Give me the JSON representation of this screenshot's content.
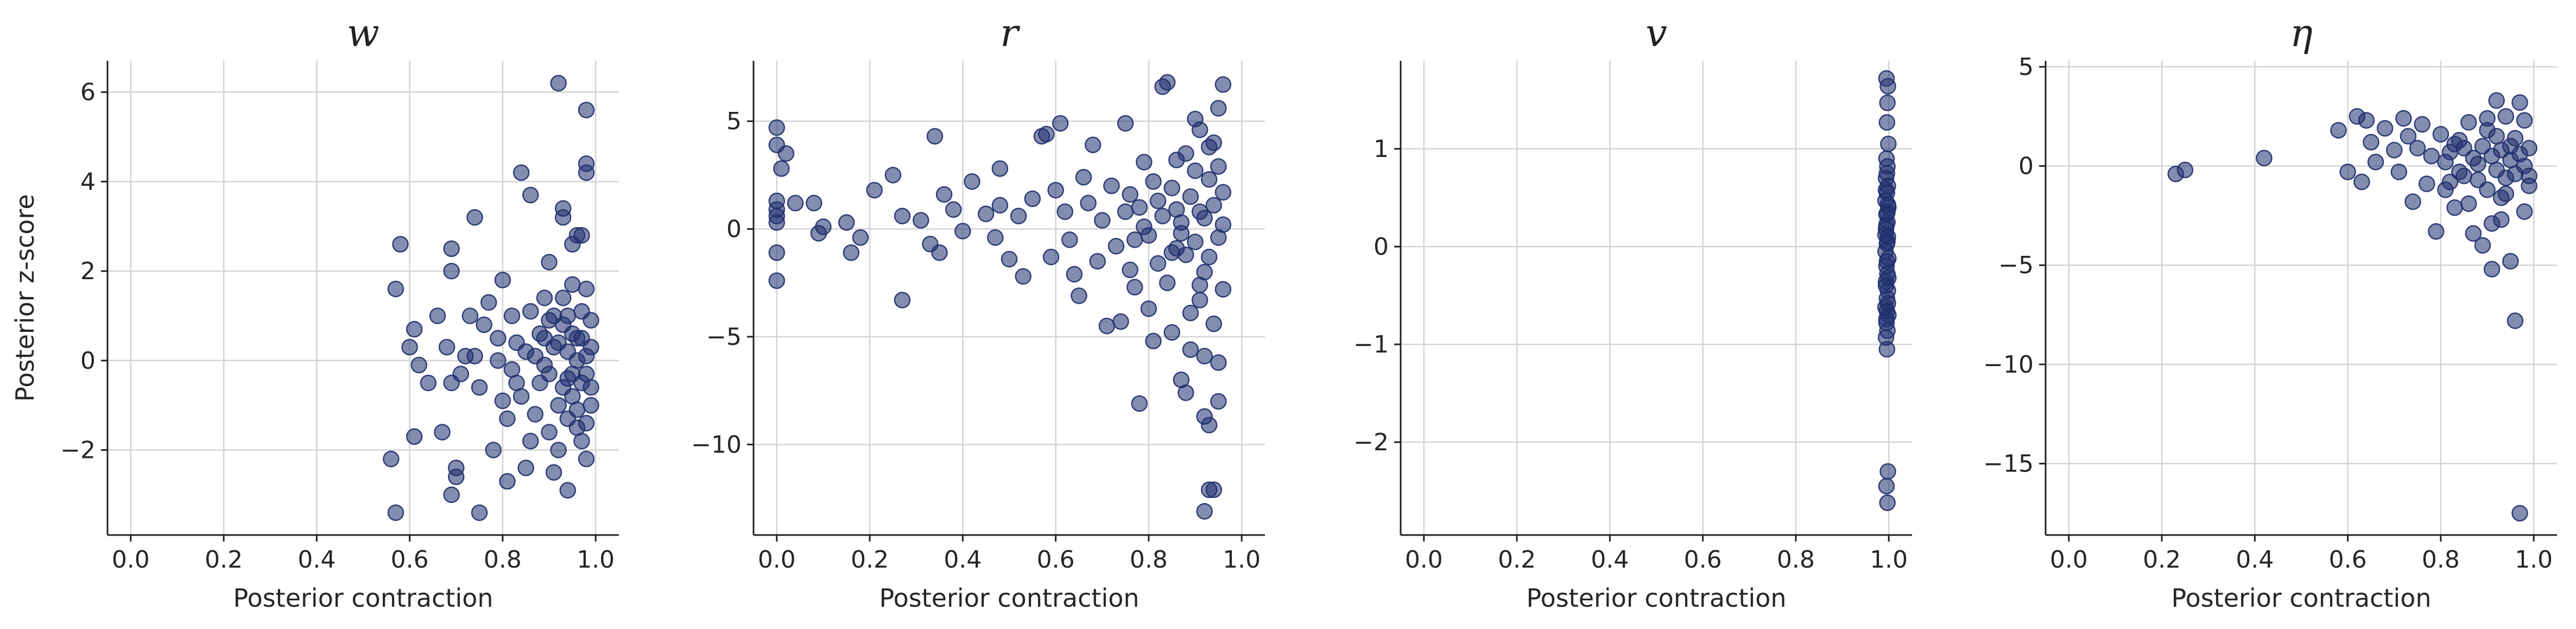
{
  "chart_data": [
    {
      "type": "scatter",
      "title": "w",
      "xlabel": "Posterior contraction",
      "ylabel": "Posterior z-score",
      "xlim": [
        -0.05,
        1.05
      ],
      "ylim": [
        -3.9,
        6.7
      ],
      "xticks": [
        "0.0",
        "0.2",
        "0.4",
        "0.6",
        "0.8",
        "1.0"
      ],
      "yticks": [
        "−2",
        "0",
        "2",
        "4",
        "6"
      ],
      "ytick_values": [
        -2,
        0,
        2,
        4,
        6
      ],
      "grid": true,
      "marker_color": "#1f2f6e",
      "points": [
        [
          0.58,
          2.6
        ],
        [
          0.57,
          1.6
        ],
        [
          0.6,
          0.3
        ],
        [
          0.61,
          0.7
        ],
        [
          0.56,
          -2.2
        ],
        [
          0.57,
          -3.4
        ],
        [
          0.61,
          -1.7
        ],
        [
          0.66,
          1.0
        ],
        [
          0.69,
          2.5
        ],
        [
          0.69,
          2.0
        ],
        [
          0.68,
          0.3
        ],
        [
          0.69,
          -0.5
        ],
        [
          0.67,
          -1.6
        ],
        [
          0.7,
          -2.4
        ],
        [
          0.7,
          -2.6
        ],
        [
          0.69,
          -3.0
        ],
        [
          0.74,
          3.2
        ],
        [
          0.73,
          1.0
        ],
        [
          0.74,
          0.1
        ],
        [
          0.75,
          -0.6
        ],
        [
          0.75,
          -3.4
        ],
        [
          0.78,
          -2.0
        ],
        [
          0.79,
          0.5
        ],
        [
          0.8,
          1.8
        ],
        [
          0.81,
          -1.3
        ],
        [
          0.81,
          -2.7
        ],
        [
          0.82,
          1.0
        ],
        [
          0.83,
          -0.5
        ],
        [
          0.84,
          4.2
        ],
        [
          0.86,
          3.7
        ],
        [
          0.85,
          -2.4
        ],
        [
          0.86,
          -1.8
        ],
        [
          0.87,
          0.1
        ],
        [
          0.88,
          -0.5
        ],
        [
          0.89,
          1.4
        ],
        [
          0.9,
          -1.6
        ],
        [
          0.9,
          2.2
        ],
        [
          0.91,
          -2.5
        ],
        [
          0.92,
          6.2
        ],
        [
          0.93,
          3.4
        ],
        [
          0.93,
          3.2
        ],
        [
          0.92,
          -2.0
        ],
        [
          0.94,
          -2.9
        ],
        [
          0.94,
          1.0
        ],
        [
          0.95,
          2.6
        ],
        [
          0.95,
          -0.8
        ],
        [
          0.96,
          2.8
        ],
        [
          0.96,
          -1.5
        ],
        [
          0.97,
          0.5
        ],
        [
          0.98,
          5.6
        ],
        [
          0.98,
          4.4
        ],
        [
          0.98,
          4.2
        ],
        [
          0.97,
          2.8
        ],
        [
          0.98,
          1.6
        ],
        [
          0.98,
          -0.3
        ],
        [
          0.98,
          -2.2
        ],
        [
          0.99,
          0.9
        ],
        [
          0.99,
          -1.0
        ],
        [
          0.97,
          -1.8
        ],
        [
          0.96,
          0.0
        ],
        [
          0.95,
          0.6
        ],
        [
          0.94,
          -0.4
        ],
        [
          0.93,
          1.4
        ],
        [
          0.92,
          -1.0
        ],
        [
          0.91,
          0.3
        ],
        [
          0.9,
          0.9
        ],
        [
          0.89,
          -0.1
        ],
        [
          0.88,
          0.6
        ],
        [
          0.87,
          -1.2
        ],
        [
          0.86,
          1.1
        ],
        [
          0.85,
          0.2
        ],
        [
          0.84,
          -0.8
        ],
        [
          0.83,
          0.4
        ],
        [
          0.82,
          -0.2
        ],
        [
          0.8,
          -0.9
        ],
        [
          0.79,
          0.0
        ],
        [
          0.77,
          1.3
        ],
        [
          0.76,
          0.8
        ],
        [
          0.72,
          0.1
        ],
        [
          0.71,
          -0.3
        ],
        [
          0.64,
          -0.5
        ],
        [
          0.62,
          -0.1
        ],
        [
          0.94,
          0.2
        ],
        [
          0.95,
          -0.3
        ],
        [
          0.96,
          0.5
        ],
        [
          0.97,
          -0.5
        ],
        [
          0.98,
          0.1
        ],
        [
          0.99,
          0.3
        ],
        [
          0.93,
          -0.6
        ],
        [
          0.92,
          0.4
        ],
        [
          0.96,
          -1.1
        ],
        [
          0.97,
          1.1
        ],
        [
          0.95,
          1.7
        ],
        [
          0.94,
          -1.3
        ],
        [
          0.98,
          -1.4
        ],
        [
          0.99,
          -0.6
        ],
        [
          0.91,
          1.0
        ],
        [
          0.9,
          -0.3
        ],
        [
          0.89,
          0.5
        ],
        [
          0.93,
          0.8
        ]
      ]
    },
    {
      "type": "scatter",
      "title": "r",
      "xlabel": "Posterior contraction",
      "ylabel": "",
      "xlim": [
        -0.05,
        1.05
      ],
      "ylim": [
        -14.2,
        7.8
      ],
      "xticks": [
        "0.0",
        "0.2",
        "0.4",
        "0.6",
        "0.8",
        "1.0"
      ],
      "yticks": [
        "−10",
        "−5",
        "0",
        "5"
      ],
      "ytick_values": [
        -10,
        -5,
        0,
        5
      ],
      "grid": true,
      "marker_color": "#1f2f6e",
      "points": [
        [
          0.0,
          4.7
        ],
        [
          0.0,
          3.9
        ],
        [
          0.01,
          2.8
        ],
        [
          0.02,
          3.5
        ],
        [
          0.0,
          1.3
        ],
        [
          0.0,
          0.9
        ],
        [
          0.0,
          0.6
        ],
        [
          0.0,
          0.3
        ],
        [
          0.0,
          -1.1
        ],
        [
          0.0,
          -2.4
        ],
        [
          0.04,
          1.2
        ],
        [
          0.08,
          1.2
        ],
        [
          0.09,
          -0.2
        ],
        [
          0.1,
          0.1
        ],
        [
          0.15,
          0.3
        ],
        [
          0.16,
          -1.1
        ],
        [
          0.18,
          -0.4
        ],
        [
          0.21,
          1.8
        ],
        [
          0.25,
          2.5
        ],
        [
          0.27,
          0.6
        ],
        [
          0.27,
          -3.3
        ],
        [
          0.31,
          0.4
        ],
        [
          0.33,
          -0.7
        ],
        [
          0.34,
          4.3
        ],
        [
          0.35,
          -1.1
        ],
        [
          0.36,
          1.6
        ],
        [
          0.38,
          0.9
        ],
        [
          0.4,
          -0.1
        ],
        [
          0.42,
          2.2
        ],
        [
          0.45,
          0.7
        ],
        [
          0.47,
          -0.4
        ],
        [
          0.48,
          2.8
        ],
        [
          0.48,
          1.1
        ],
        [
          0.5,
          -1.4
        ],
        [
          0.52,
          0.6
        ],
        [
          0.53,
          -2.2
        ],
        [
          0.55,
          1.4
        ],
        [
          0.57,
          4.3
        ],
        [
          0.58,
          4.4
        ],
        [
          0.59,
          -1.3
        ],
        [
          0.6,
          1.8
        ],
        [
          0.61,
          4.9
        ],
        [
          0.62,
          0.8
        ],
        [
          0.63,
          -0.5
        ],
        [
          0.64,
          -2.1
        ],
        [
          0.65,
          -3.1
        ],
        [
          0.66,
          2.4
        ],
        [
          0.67,
          1.2
        ],
        [
          0.68,
          3.9
        ],
        [
          0.69,
          -1.5
        ],
        [
          0.7,
          0.4
        ],
        [
          0.71,
          -4.5
        ],
        [
          0.72,
          2.0
        ],
        [
          0.73,
          -0.8
        ],
        [
          0.74,
          -4.3
        ],
        [
          0.75,
          4.9
        ],
        [
          0.76,
          1.6
        ],
        [
          0.77,
          -2.7
        ],
        [
          0.78,
          -8.1
        ],
        [
          0.79,
          3.1
        ],
        [
          0.8,
          -0.3
        ],
        [
          0.81,
          -5.2
        ],
        [
          0.82,
          1.3
        ],
        [
          0.83,
          6.6
        ],
        [
          0.84,
          6.8
        ],
        [
          0.85,
          -4.8
        ],
        [
          0.86,
          3.2
        ],
        [
          0.87,
          -7.0
        ],
        [
          0.88,
          -7.6
        ],
        [
          0.89,
          -5.6
        ],
        [
          0.9,
          5.1
        ],
        [
          0.91,
          -3.3
        ],
        [
          0.92,
          -8.7
        ],
        [
          0.93,
          -9.1
        ],
        [
          0.93,
          -12.1
        ],
        [
          0.94,
          -12.1
        ],
        [
          0.92,
          -13.1
        ],
        [
          0.95,
          -8.0
        ],
        [
          0.95,
          5.6
        ],
        [
          0.96,
          6.7
        ],
        [
          0.94,
          4.0
        ],
        [
          0.93,
          2.3
        ],
        [
          0.92,
          -2.0
        ],
        [
          0.91,
          0.8
        ],
        [
          0.9,
          -0.6
        ],
        [
          0.89,
          1.5
        ],
        [
          0.88,
          -1.2
        ],
        [
          0.87,
          0.3
        ],
        [
          0.86,
          -0.9
        ],
        [
          0.85,
          1.9
        ],
        [
          0.84,
          -2.5
        ],
        [
          0.83,
          0.6
        ],
        [
          0.82,
          -1.6
        ],
        [
          0.81,
          2.2
        ],
        [
          0.8,
          -3.7
        ],
        [
          0.79,
          0.1
        ],
        [
          0.78,
          1.0
        ],
        [
          0.77,
          -0.5
        ],
        [
          0.76,
          -1.9
        ],
        [
          0.75,
          0.8
        ],
        [
          0.96,
          0.2
        ],
        [
          0.95,
          -0.4
        ],
        [
          0.94,
          1.1
        ],
        [
          0.93,
          -1.3
        ],
        [
          0.92,
          0.5
        ],
        [
          0.91,
          -2.6
        ],
        [
          0.9,
          2.7
        ],
        [
          0.89,
          -3.9
        ],
        [
          0.88,
          3.5
        ],
        [
          0.87,
          -0.2
        ],
        [
          0.86,
          0.9
        ],
        [
          0.85,
          -1.1
        ],
        [
          0.95,
          2.9
        ],
        [
          0.94,
          -4.4
        ],
        [
          0.93,
          3.8
        ],
        [
          0.92,
          -5.9
        ],
        [
          0.91,
          4.6
        ],
        [
          0.96,
          -2.8
        ],
        [
          0.96,
          1.7
        ],
        [
          0.95,
          -6.2
        ]
      ]
    },
    {
      "type": "scatter",
      "title": "v",
      "xlabel": "Posterior contraction",
      "ylabel": "",
      "xlim": [
        -0.05,
        1.05
      ],
      "ylim": [
        -2.95,
        1.9
      ],
      "xticks": [
        "0.0",
        "0.2",
        "0.4",
        "0.6",
        "0.8",
        "1.0"
      ],
      "yticks": [
        "−2",
        "−1",
        "0",
        "1"
      ],
      "ytick_values": [
        -2,
        -1,
        0,
        1
      ],
      "grid": true,
      "marker_color": "#1f2f6e",
      "points": [
        [
          0.995,
          1.72
        ],
        [
          0.998,
          1.64
        ],
        [
          0.997,
          1.47
        ],
        [
          0.996,
          1.27
        ],
        [
          0.999,
          1.05
        ],
        [
          0.995,
          0.9
        ],
        [
          0.997,
          0.82
        ],
        [
          0.994,
          0.7
        ],
        [
          0.998,
          0.62
        ],
        [
          0.996,
          0.55
        ],
        [
          0.993,
          0.47
        ],
        [
          0.999,
          0.4
        ],
        [
          0.995,
          0.33
        ],
        [
          0.997,
          0.25
        ],
        [
          0.994,
          0.18
        ],
        [
          0.998,
          0.1
        ],
        [
          0.996,
          0.03
        ],
        [
          0.993,
          -0.05
        ],
        [
          0.999,
          -0.12
        ],
        [
          0.995,
          -0.2
        ],
        [
          0.997,
          -0.28
        ],
        [
          0.994,
          -0.36
        ],
        [
          0.998,
          -0.45
        ],
        [
          0.996,
          -0.53
        ],
        [
          0.993,
          -0.62
        ],
        [
          0.999,
          -0.7
        ],
        [
          0.995,
          -0.78
        ],
        [
          0.997,
          -0.86
        ],
        [
          0.994,
          -0.93
        ],
        [
          0.996,
          -1.05
        ],
        [
          0.998,
          -2.3
        ],
        [
          0.995,
          -2.45
        ],
        [
          0.997,
          -2.62
        ],
        [
          0.996,
          0.75
        ],
        [
          0.994,
          0.58
        ],
        [
          0.998,
          0.43
        ],
        [
          0.995,
          0.22
        ],
        [
          0.997,
          0.05
        ],
        [
          0.996,
          -0.15
        ],
        [
          0.994,
          -0.4
        ],
        [
          0.998,
          -0.58
        ],
        [
          0.995,
          -0.74
        ],
        [
          0.997,
          0.35
        ],
        [
          0.999,
          -0.32
        ],
        [
          0.993,
          0.12
        ],
        [
          0.996,
          -0.66
        ]
      ]
    },
    {
      "type": "scatter",
      "title": "η",
      "xlabel": "Posterior contraction",
      "ylabel": "",
      "xlim": [
        -0.05,
        1.05
      ],
      "ylim": [
        -18.6,
        5.3
      ],
      "xticks": [
        "0.0",
        "0.2",
        "0.4",
        "0.6",
        "0.8",
        "1.0"
      ],
      "yticks": [
        "−15",
        "−10",
        "−5",
        "0",
        "5"
      ],
      "ytick_values": [
        -15,
        -10,
        -5,
        0,
        5
      ],
      "grid": true,
      "marker_color": "#1f2f6e",
      "points": [
        [
          0.23,
          -0.4
        ],
        [
          0.25,
          -0.2
        ],
        [
          0.42,
          0.4
        ],
        [
          0.58,
          1.8
        ],
        [
          0.6,
          -0.3
        ],
        [
          0.62,
          2.5
        ],
        [
          0.63,
          -0.8
        ],
        [
          0.64,
          2.3
        ],
        [
          0.65,
          1.2
        ],
        [
          0.66,
          0.2
        ],
        [
          0.68,
          1.9
        ],
        [
          0.7,
          0.8
        ],
        [
          0.71,
          -0.3
        ],
        [
          0.72,
          2.4
        ],
        [
          0.73,
          1.5
        ],
        [
          0.74,
          -1.8
        ],
        [
          0.75,
          0.9
        ],
        [
          0.76,
          2.1
        ],
        [
          0.77,
          -0.9
        ],
        [
          0.78,
          0.5
        ],
        [
          0.79,
          -3.3
        ],
        [
          0.8,
          1.6
        ],
        [
          0.81,
          -1.2
        ],
        [
          0.82,
          0.7
        ],
        [
          0.83,
          -2.1
        ],
        [
          0.84,
          1.3
        ],
        [
          0.85,
          -0.5
        ],
        [
          0.86,
          2.2
        ],
        [
          0.87,
          -3.4
        ],
        [
          0.88,
          0.1
        ],
        [
          0.89,
          -4.0
        ],
        [
          0.9,
          1.8
        ],
        [
          0.91,
          -5.2
        ],
        [
          0.92,
          3.3
        ],
        [
          0.93,
          -1.6
        ],
        [
          0.94,
          2.5
        ],
        [
          0.95,
          -4.8
        ],
        [
          0.96,
          -7.8
        ],
        [
          0.97,
          -17.5
        ],
        [
          0.97,
          3.2
        ],
        [
          0.98,
          2.3
        ],
        [
          0.98,
          -2.3
        ],
        [
          0.99,
          0.9
        ],
        [
          0.99,
          -1.0
        ],
        [
          0.96,
          1.4
        ],
        [
          0.95,
          0.3
        ],
        [
          0.94,
          -0.6
        ],
        [
          0.93,
          0.8
        ],
        [
          0.92,
          -0.2
        ],
        [
          0.91,
          0.5
        ],
        [
          0.9,
          -1.2
        ],
        [
          0.89,
          1.0
        ],
        [
          0.88,
          -0.7
        ],
        [
          0.87,
          0.4
        ],
        [
          0.86,
          -1.9
        ],
        [
          0.85,
          0.9
        ],
        [
          0.84,
          -0.3
        ],
        [
          0.83,
          1.1
        ],
        [
          0.82,
          -0.8
        ],
        [
          0.81,
          0.2
        ],
        [
          0.97,
          0.6
        ],
        [
          0.96,
          -0.4
        ],
        [
          0.95,
          1.0
        ],
        [
          0.94,
          -1.4
        ],
        [
          0.98,
          0.0
        ],
        [
          0.99,
          -0.5
        ],
        [
          0.93,
          -2.7
        ],
        [
          0.92,
          1.5
        ],
        [
          0.91,
          -2.9
        ],
        [
          0.9,
          2.4
        ]
      ]
    }
  ]
}
